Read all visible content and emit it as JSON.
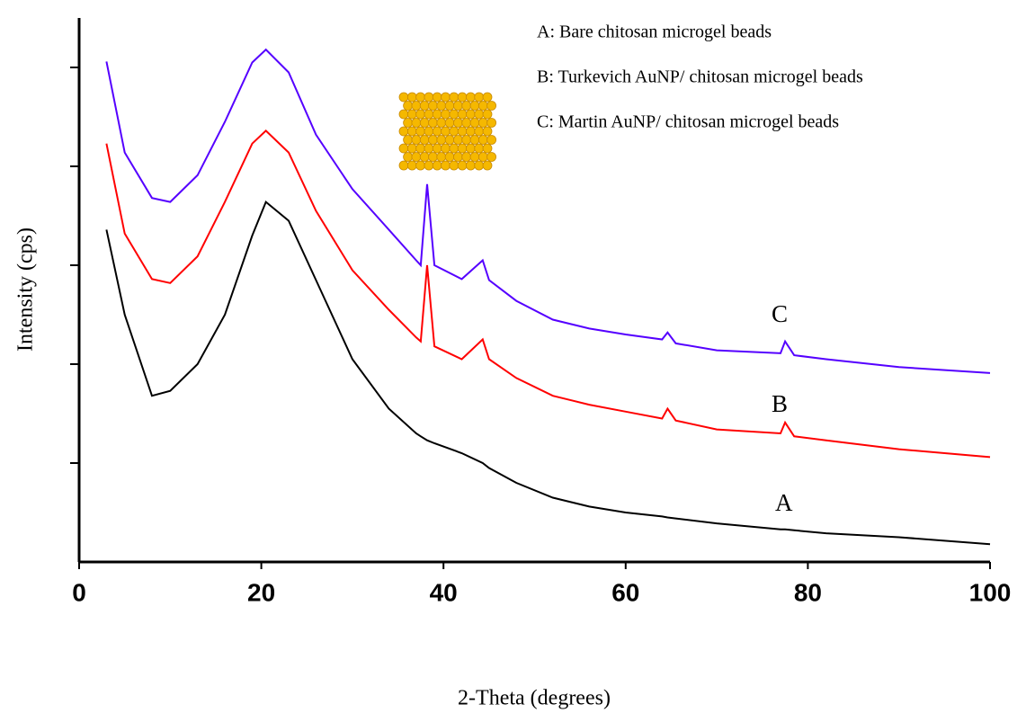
{
  "chart_data": {
    "type": "line",
    "xlabel": "2-Theta (degrees)",
    "ylabel": "Intensity (cps)",
    "x": [
      3,
      5,
      8,
      10,
      13,
      16,
      19,
      20.5,
      23,
      26,
      30,
      34,
      37,
      37.5,
      38.2,
      39,
      42,
      44.3,
      45,
      48,
      52,
      56,
      60,
      64,
      64.6,
      65.5,
      70,
      77,
      77.5,
      78.5,
      82,
      90,
      100
    ],
    "series": [
      {
        "name": "A: Bare chitosan microgel beads",
        "label": "A",
        "color": "#000000",
        "values": [
          3.36,
          2.5,
          1.68,
          1.73,
          2.0,
          2.5,
          3.3,
          3.64,
          3.45,
          2.85,
          2.05,
          1.55,
          1.3,
          1.27,
          1.23,
          1.2,
          1.1,
          1.0,
          0.95,
          0.8,
          0.65,
          0.56,
          0.5,
          0.46,
          0.45,
          0.44,
          0.39,
          0.33,
          0.33,
          0.32,
          0.29,
          0.25,
          0.18
        ]
      },
      {
        "name": "B: Turkevich AuNP/ chitosan microgel beads",
        "label": "B",
        "color": "#ff0000",
        "values": [
          4.23,
          3.32,
          2.86,
          2.82,
          3.09,
          3.64,
          4.23,
          4.36,
          4.14,
          3.55,
          2.95,
          2.55,
          2.27,
          2.23,
          3.0,
          2.18,
          2.05,
          2.25,
          2.05,
          1.86,
          1.68,
          1.59,
          1.52,
          1.45,
          1.55,
          1.43,
          1.34,
          1.3,
          1.41,
          1.27,
          1.23,
          1.14,
          1.06
        ]
      },
      {
        "name": "C: Martin AuNP/ chitosan microgel beads",
        "label": "C",
        "color": "#5500ff",
        "values": [
          5.06,
          4.14,
          3.68,
          3.64,
          3.91,
          4.45,
          5.05,
          5.18,
          4.95,
          4.32,
          3.77,
          3.36,
          3.05,
          3.0,
          3.82,
          3.0,
          2.86,
          3.05,
          2.85,
          2.64,
          2.45,
          2.36,
          2.3,
          2.25,
          2.32,
          2.21,
          2.14,
          2.11,
          2.23,
          2.09,
          2.05,
          1.97,
          1.91
        ]
      }
    ],
    "xlim": [
      0,
      100
    ],
    "xticks": [
      0,
      20,
      40,
      60,
      80,
      100
    ],
    "ylim": [
      0,
      5.5
    ],
    "yticks": [
      1,
      2,
      3,
      4,
      5
    ]
  }
}
